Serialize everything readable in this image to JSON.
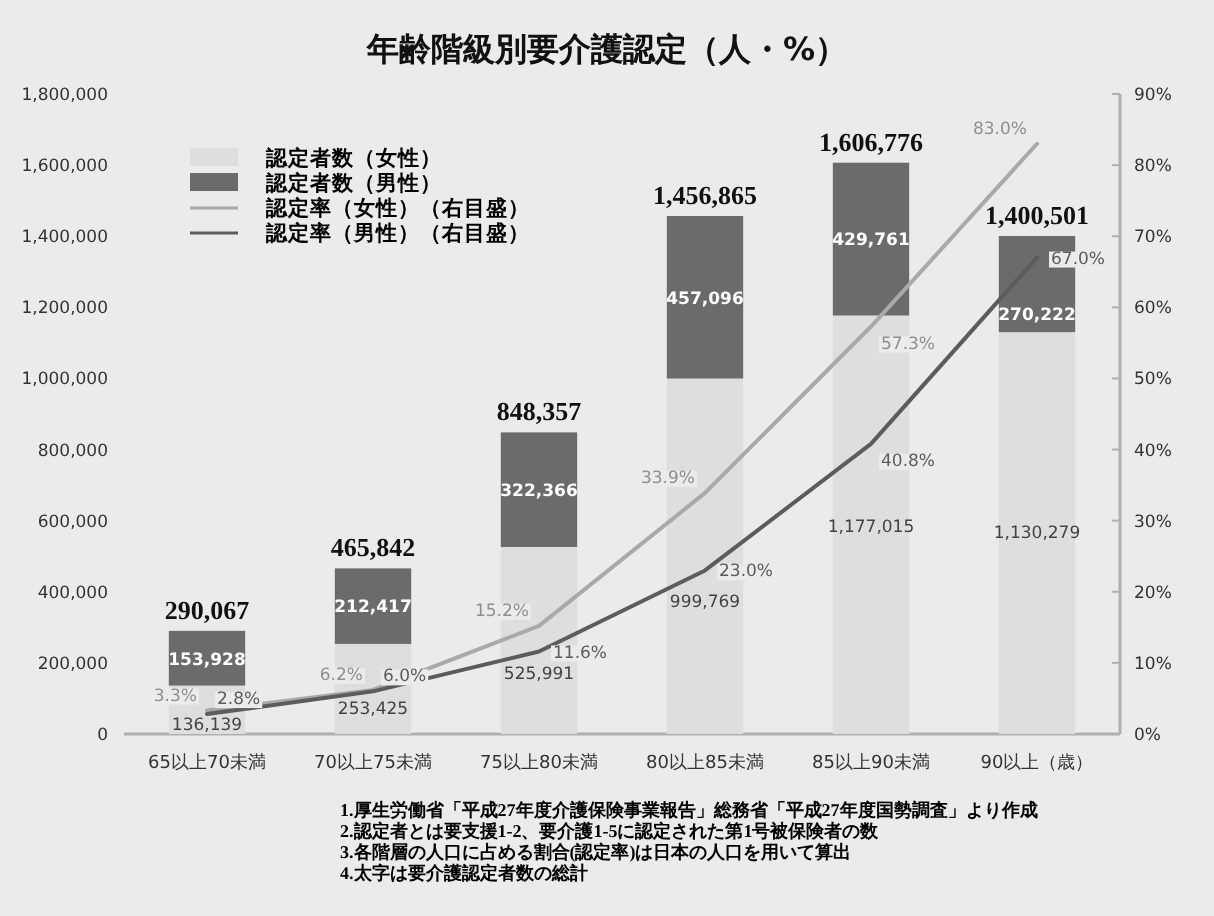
{
  "chart_data": {
    "type": "bar",
    "title": "年齢階級別要介護認定（人・%）",
    "categories": [
      "65以上70未満",
      "70以上75未満",
      "75以上80未満",
      "80以上85未満",
      "85以上90未満",
      "90以上（歳）"
    ],
    "stacked": true,
    "legend": "top left",
    "series": [
      {
        "name": "認定者数（女性）",
        "color": "#dedede",
        "values": [
          136139,
          253425,
          525991,
          999769,
          1177015,
          1130279
        ],
        "value_labels": [
          "136,139",
          "253,425",
          "525,991",
          "999,769",
          "1,177,015",
          "1,130,279"
        ]
      },
      {
        "name": "認定者数（男性）",
        "color": "#6b6b6b",
        "values": [
          153928,
          212417,
          322366,
          457096,
          429761,
          270222
        ],
        "value_labels": [
          "153,928",
          "212,417",
          "322,366",
          "457,096",
          "429,761",
          "270,222"
        ]
      },
      {
        "name": "認定率（女性）（右目盛）",
        "type": "line",
        "axis": "y2",
        "color": "#a9a9a9",
        "values": [
          3.3,
          6.2,
          15.2,
          33.9,
          57.3,
          83.0
        ],
        "value_labels": [
          "3.3%",
          "6.2%",
          "15.2%",
          "33.9%",
          "57.3%",
          "83.0%"
        ]
      },
      {
        "name": "認定率（男性）（右目盛）",
        "type": "line",
        "axis": "y2",
        "color": "#5c5c5c",
        "values": [
          2.8,
          6.0,
          11.6,
          23.0,
          40.8,
          67.0
        ],
        "value_labels": [
          "2.8%",
          "6.0%",
          "11.6%",
          "23.0%",
          "40.8%",
          "67.0%"
        ]
      }
    ],
    "totals": [
      "290,067",
      "465,842",
      "848,357",
      "1,456,865",
      "1,606,776",
      "1,400,501"
    ],
    "ylim": [
      0,
      1800000
    ],
    "yticks": [
      {
        "value": 0,
        "label": "0"
      },
      {
        "value": 200000,
        "label": "200,000"
      },
      {
        "value": 400000,
        "label": "400,000"
      },
      {
        "value": 600000,
        "label": "600,000"
      },
      {
        "value": 800000,
        "label": "800,000"
      },
      {
        "value": 1000000,
        "label": "1,000,000"
      },
      {
        "value": 1200000,
        "label": "1,200,000"
      },
      {
        "value": 1400000,
        "label": "1,400,000"
      },
      {
        "value": 1600000,
        "label": "1,600,000"
      },
      {
        "value": 1800000,
        "label": "1,800,000"
      }
    ],
    "y2lim": [
      0,
      90
    ],
    "y2ticks": [
      {
        "value": 0,
        "label": "0%"
      },
      {
        "value": 10,
        "label": "10%"
      },
      {
        "value": 20,
        "label": "20%"
      },
      {
        "value": 30,
        "label": "30%"
      },
      {
        "value": 40,
        "label": "40%"
      },
      {
        "value": 50,
        "label": "50%"
      },
      {
        "value": 60,
        "label": "60%"
      },
      {
        "value": 70,
        "label": "70%"
      },
      {
        "value": 80,
        "label": "80%"
      },
      {
        "value": 90,
        "label": "90%"
      }
    ],
    "annotations": [
      "1.厚生労働省「平成27年度介護保険事業報告」総務省「平成27年度国勢調査」より作成",
      "2.認定者とは要支援1-2、要介護1-5に認定された第1号被保険者の数",
      "3.各階層の人口に占める割合(認定率)は日本の人口を用いて算出",
      "4.太字は要介護認定者数の総計"
    ]
  }
}
